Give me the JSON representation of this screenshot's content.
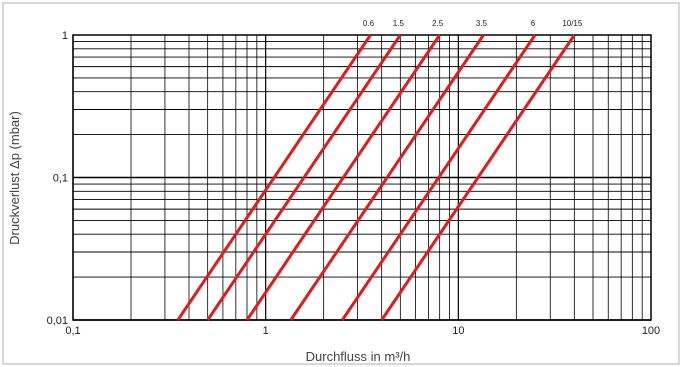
{
  "chart_data": {
    "type": "line",
    "title": "",
    "xlabel": "Durchfluss in m³/h",
    "ylabel": "Druckverlust  Δp (mbar)",
    "xscale": "log",
    "yscale": "log",
    "xlim": [
      0.1,
      100
    ],
    "ylim": [
      0.01,
      1
    ],
    "grid": true,
    "x_tick_labels": [
      "0,1",
      "1",
      "10",
      "100"
    ],
    "y_tick_labels": [
      "0,01",
      "0,1",
      "1"
    ],
    "series": [
      {
        "name": "0.6",
        "color": "#e11b1b",
        "points": [
          [
            0.35,
            0.01
          ],
          [
            3.5,
            1
          ]
        ]
      },
      {
        "name": "1.5",
        "color": "#e11b1b",
        "points": [
          [
            0.5,
            0.01
          ],
          [
            5.0,
            1
          ]
        ]
      },
      {
        "name": "2.5",
        "color": "#e11b1b",
        "points": [
          [
            0.8,
            0.01
          ],
          [
            8.0,
            1
          ]
        ]
      },
      {
        "name": "3.5",
        "color": "#e11b1b",
        "points": [
          [
            1.35,
            0.01
          ],
          [
            13.5,
            1
          ]
        ]
      },
      {
        "name": "6",
        "color": "#e11b1b",
        "points": [
          [
            2.5,
            0.01
          ],
          [
            25,
            1
          ]
        ]
      },
      {
        "name": "10/15",
        "color": "#e11b1b",
        "points": [
          [
            4.0,
            0.01
          ],
          [
            40,
            1
          ]
        ]
      }
    ]
  }
}
